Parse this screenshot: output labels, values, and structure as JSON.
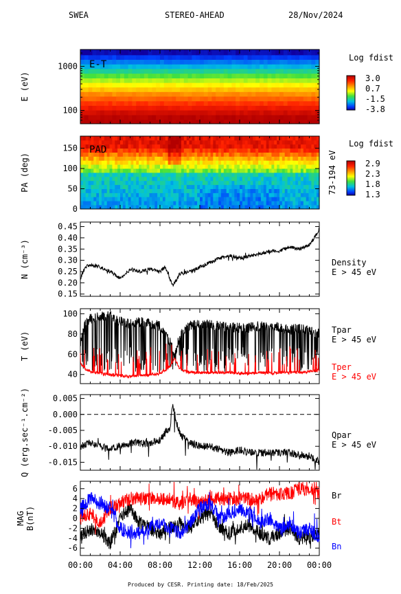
{
  "header": {
    "instrument": "SWEA",
    "spacecraft": "STEREO-AHEAD",
    "date": "28/Nov/2024"
  },
  "footer": {
    "produced": "Produced by CESR.   Printing date: 18/Feb/2025"
  },
  "colors": {
    "axes": "#000000",
    "tper": "#ff0000",
    "bt": "#ff0000",
    "bn": "#0000ff",
    "br": "#000000"
  },
  "chart_data": [
    {
      "type": "heatmap",
      "panel_label": "E-T",
      "ylabel": "E (eV)",
      "yscale": "log",
      "ylim": [
        50,
        2400
      ],
      "ytick_labels": [
        "100",
        "1000"
      ],
      "yticks": [
        100,
        1000
      ],
      "colorbar": {
        "title": "Log fdist",
        "ticks": [
          "3.0",
          "0.7",
          "-1.5",
          "-3.8"
        ],
        "range": [
          -3.8,
          3.0
        ]
      },
      "energy_bands": [
        {
          "e": 55,
          "v": 3.0
        },
        {
          "e": 70,
          "v": 2.9
        },
        {
          "e": 90,
          "v": 2.6
        },
        {
          "e": 115,
          "v": 2.2
        },
        {
          "e": 145,
          "v": 1.8
        },
        {
          "e": 185,
          "v": 1.4
        },
        {
          "e": 235,
          "v": 1.0
        },
        {
          "e": 300,
          "v": 0.5
        },
        {
          "e": 380,
          "v": 0.0
        },
        {
          "e": 480,
          "v": -0.5
        },
        {
          "e": 610,
          "v": -1.0
        },
        {
          "e": 780,
          "v": -1.6
        },
        {
          "e": 990,
          "v": -2.2
        },
        {
          "e": 1260,
          "v": -2.7
        },
        {
          "e": 1600,
          "v": -3.2
        },
        {
          "e": 2040,
          "v": -3.7
        }
      ]
    },
    {
      "type": "heatmap",
      "panel_label": "PAD",
      "ylabel": "PA (deg)",
      "ylim": [
        0,
        180
      ],
      "yticks": [
        0,
        50,
        100,
        150
      ],
      "ytick_labels": [
        "0",
        "50",
        "100",
        "150"
      ],
      "right_label": "73-194 eV",
      "colorbar": {
        "title": "Log fdist",
        "ticks": [
          "2.9",
          "2.3",
          "1.8",
          "1.3"
        ],
        "range": [
          1.3,
          2.9
        ]
      }
    },
    {
      "type": "line",
      "ylabel": "N (cm⁻³)",
      "ylim": [
        0.14,
        0.47
      ],
      "yticks": [
        0.15,
        0.2,
        0.25,
        0.3,
        0.35,
        0.4,
        0.45
      ],
      "ytick_labels": [
        "0.15",
        "0.20",
        "0.25",
        "0.30",
        "0.35",
        "0.40",
        "0.45"
      ],
      "right_labels": [
        "Density",
        "E > 45 eV"
      ],
      "series": [
        {
          "color": "#000000",
          "x": [
            0,
            0.5,
            1,
            2,
            3,
            4,
            5,
            6,
            7,
            8,
            8.5,
            9,
            9.3,
            9.6,
            10,
            11,
            12,
            13,
            14,
            15,
            16,
            17,
            18,
            19,
            20,
            21,
            22,
            23,
            23.5,
            24
          ],
          "y": [
            0.22,
            0.27,
            0.28,
            0.27,
            0.25,
            0.22,
            0.26,
            0.25,
            0.26,
            0.25,
            0.27,
            0.22,
            0.19,
            0.21,
            0.24,
            0.25,
            0.27,
            0.29,
            0.31,
            0.32,
            0.31,
            0.32,
            0.33,
            0.34,
            0.34,
            0.36,
            0.35,
            0.37,
            0.4,
            0.44
          ]
        }
      ]
    },
    {
      "type": "line",
      "ylabel": "T (eV)",
      "ylim": [
        31,
        105
      ],
      "yticks": [
        40,
        60,
        80,
        100
      ],
      "ytick_labels": [
        "40",
        "60",
        "80",
        "100"
      ],
      "right_labels": [
        "Tpar",
        "E > 45 eV",
        "Tper",
        "E > 45 eV"
      ],
      "series": [
        {
          "name": "Tpar",
          "color": "#000000",
          "x": [
            0,
            0.5,
            1,
            2,
            3,
            4,
            5,
            6,
            7,
            8,
            9,
            9.5,
            10,
            11,
            12,
            13,
            14,
            15,
            16,
            17,
            18,
            19,
            20,
            21,
            22,
            23,
            24
          ],
          "y": [
            72,
            90,
            95,
            97,
            98,
            93,
            90,
            92,
            90,
            88,
            72,
            58,
            80,
            88,
            90,
            89,
            88,
            87,
            86,
            86,
            88,
            87,
            86,
            84,
            86,
            83,
            80
          ]
        },
        {
          "name": "Tper",
          "color": "#ff0000",
          "x": [
            0,
            0.5,
            1,
            2,
            3,
            4,
            5,
            6,
            7,
            8,
            9,
            9.5,
            10,
            11,
            12,
            13,
            14,
            15,
            16,
            17,
            18,
            19,
            20,
            21,
            22,
            23,
            24
          ],
          "y": [
            52,
            46,
            43,
            41,
            40,
            39,
            38,
            39,
            40,
            41,
            48,
            56,
            45,
            42,
            42,
            42,
            42,
            42,
            41,
            41,
            42,
            41,
            42,
            42,
            42,
            43,
            44
          ]
        }
      ]
    },
    {
      "type": "line",
      "ylabel": "Q (erg.sec⁻¹.cm⁻²)",
      "ylim": [
        -0.0175,
        0.0062
      ],
      "yticks": [
        -0.015,
        -0.01,
        -0.005,
        0.0,
        0.005
      ],
      "ytick_labels": [
        "-0.015",
        "-0.010",
        "-0.005",
        "0.000",
        "0.005"
      ],
      "reference_line": 0.0,
      "right_labels": [
        "Qpar",
        "E > 45 eV"
      ],
      "series": [
        {
          "color": "#000000",
          "x": [
            0,
            1,
            2,
            3,
            4,
            5,
            6,
            7,
            8,
            9,
            9.3,
            9.6,
            10,
            11,
            12,
            13,
            14,
            15,
            16,
            17,
            18,
            19,
            20,
            21,
            22,
            23,
            24
          ],
          "y": [
            -0.01,
            -0.009,
            -0.01,
            -0.011,
            -0.01,
            -0.009,
            -0.009,
            -0.009,
            -0.008,
            -0.004,
            0.003,
            -0.002,
            -0.006,
            -0.009,
            -0.01,
            -0.01,
            -0.011,
            -0.012,
            -0.011,
            -0.012,
            -0.012,
            -0.012,
            -0.012,
            -0.012,
            -0.013,
            -0.013,
            -0.015
          ]
        }
      ]
    },
    {
      "type": "line",
      "ylabel": "MAG B(nT)",
      "ylim": [
        -7.5,
        7.5
      ],
      "yticks": [
        -6,
        -4,
        -2,
        0,
        2,
        4,
        6
      ],
      "ytick_labels": [
        "-6",
        "-4",
        "-2",
        "0",
        "2",
        "4",
        "6"
      ],
      "xticks": [
        0,
        4,
        8,
        12,
        16,
        20,
        24
      ],
      "xtick_labels": [
        "00:00",
        "04:00",
        "08:00",
        "12:00",
        "16:00",
        "20:00",
        "00:00"
      ],
      "right_labels": [
        "Br",
        "Bt",
        "Bn"
      ],
      "series": [
        {
          "name": "Br",
          "color": "#000000",
          "x": [
            0,
            1,
            2,
            3,
            4,
            5,
            6,
            7,
            8,
            9,
            10,
            11,
            12,
            13,
            14,
            15,
            16,
            17,
            18,
            19,
            20,
            21,
            22,
            23,
            24
          ],
          "y": [
            -4,
            -2,
            -3,
            -5,
            0,
            2,
            -1,
            -2,
            -3,
            -2,
            -1,
            -2,
            0,
            1,
            -2,
            -3,
            -2,
            -1,
            -3,
            -4,
            -3,
            -2,
            -4,
            -4,
            -3
          ]
        },
        {
          "name": "Bt",
          "color": "#ff0000",
          "x": [
            0,
            1,
            2,
            3,
            4,
            5,
            6,
            7,
            8,
            9,
            10,
            11,
            12,
            13,
            14,
            15,
            16,
            17,
            18,
            19,
            20,
            21,
            22,
            23,
            24
          ],
          "y": [
            0,
            1,
            -1,
            2,
            3,
            4,
            4,
            4,
            4,
            4,
            3,
            4,
            3,
            4,
            4,
            4,
            4,
            4,
            4,
            5,
            5,
            5,
            6,
            6,
            5
          ]
        },
        {
          "name": "Bn",
          "color": "#0000ff",
          "x": [
            0,
            1,
            2,
            3,
            4,
            5,
            6,
            7,
            8,
            9,
            10,
            11,
            12,
            13,
            14,
            15,
            16,
            17,
            18,
            19,
            20,
            21,
            22,
            23,
            24
          ],
          "y": [
            2,
            4,
            3,
            2,
            -2,
            -3,
            -3,
            -2,
            -1,
            -2,
            -3,
            -1,
            2,
            3,
            0,
            1,
            2,
            1,
            -1,
            0,
            -2,
            -1,
            -3,
            -2,
            -4
          ]
        }
      ]
    }
  ]
}
